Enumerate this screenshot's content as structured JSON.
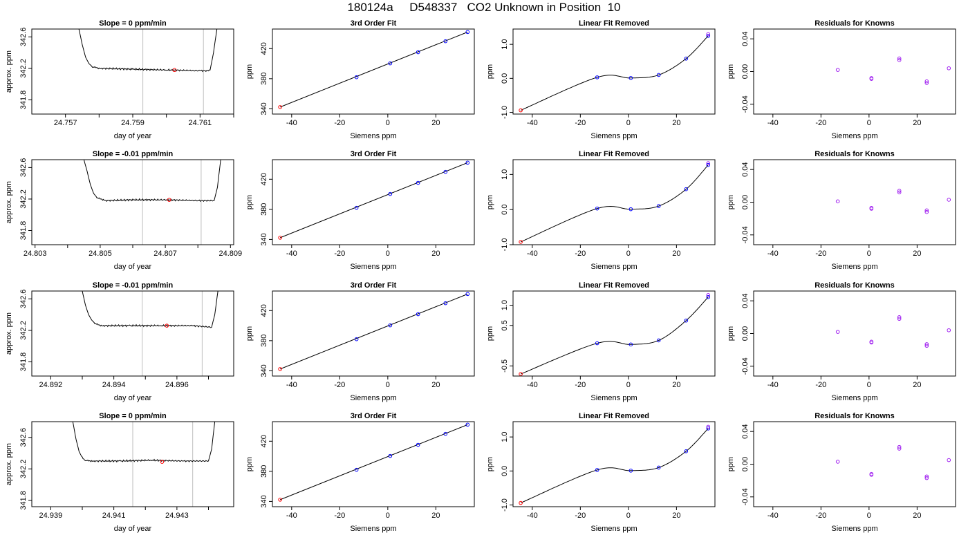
{
  "page": {
    "title": "180124a     D548337   CO2 Unknown in Position  10"
  },
  "colors": {
    "curve": "#000000",
    "vline": "#bebebe",
    "known_point": "#0000ff",
    "resid_point": "#a020f0",
    "unknown_point": "#ff0000"
  },
  "labels": {
    "fit_title": "3rd Order Fit",
    "resid_title": "Linear Fit Removed",
    "known_title": "Residuals for Knowns",
    "x_siemens": "Siemens ppm",
    "y_ppm": "ppm",
    "x_doy": "day of year",
    "y_approx": "approx. ppm"
  },
  "chart_data": [
    {
      "type": "line",
      "panel": "time",
      "title": "Slope =  0  ppm/min",
      "xlabel": "day of year",
      "ylabel": "approx. ppm",
      "xlim": [
        24.756,
        24.762
      ],
      "ylim": [
        341.62,
        342.7
      ],
      "xticks": [
        24.757,
        24.759,
        24.761
      ],
      "xticklabels": [
        "24.757",
        "24.759",
        "24.761"
      ],
      "xminor": [
        24.758,
        24.76,
        24.762
      ],
      "yticks": [
        341.8,
        342.2,
        342.6
      ],
      "yticklabels": [
        "341.8",
        "342.2",
        "342.6"
      ],
      "vlines": [
        24.7593,
        24.7611
      ],
      "x": [
        24.7574,
        24.7575,
        24.7576,
        24.7577,
        24.7578,
        24.7579,
        24.758,
        24.7581,
        24.759,
        24.76,
        24.761,
        24.7612,
        24.7613,
        24.7614,
        24.7615
      ],
      "y": [
        342.7,
        342.5,
        342.34,
        342.26,
        342.22,
        342.21,
        342.2,
        342.2,
        342.19,
        342.18,
        342.17,
        342.17,
        342.18,
        342.4,
        342.7
      ],
      "marker": [
        24.76024,
        342.18
      ]
    },
    {
      "type": "scatter",
      "panel": "fit",
      "title": "3rd Order Fit",
      "xlabel": "Siemens ppm",
      "ylabel": "ppm",
      "xlim": [
        -48,
        36
      ],
      "ylim": [
        333,
        446
      ],
      "xticks": [
        -40,
        -20,
        0,
        20
      ],
      "xticklabels": [
        "-40",
        "-20",
        "0",
        "20"
      ],
      "yticks": [
        340,
        380,
        420
      ],
      "yticklabels": [
        "340",
        "380",
        "420"
      ],
      "known_x": [
        -13.0,
        1.0,
        12.6,
        24.0,
        33.2
      ],
      "known_y": [
        382.0,
        400.4,
        415.2,
        429.8,
        442.0
      ],
      "unknown": [
        -44.8,
        342.3
      ],
      "line": [
        [
          -44.8,
          342.3
        ],
        [
          33.2,
          442.0
        ]
      ]
    },
    {
      "type": "scatter",
      "panel": "resid",
      "title": "Linear Fit Removed",
      "xlabel": "Siemens ppm",
      "ylabel": "ppm",
      "xlim": [
        -48,
        36
      ],
      "ylim": [
        -1.05,
        1.45
      ],
      "xticks": [
        -40,
        -20,
        0,
        20
      ],
      "xticklabels": [
        "-40",
        "-20",
        "0",
        "20"
      ],
      "yticks": [
        -1.0,
        0.0,
        1.0
      ],
      "yticklabels": [
        "-1.0",
        "0.0",
        "1.0"
      ],
      "known_x": [
        -13.0,
        1.0,
        12.6,
        24.0,
        33.2,
        33.2
      ],
      "known_y": [
        0.03,
        0.01,
        0.1,
        0.58,
        1.25,
        1.3
      ],
      "unknown": [
        -44.8,
        -0.94
      ]
    },
    {
      "type": "scatter",
      "panel": "knowns",
      "title": "Residuals for Knowns",
      "xlabel": "Siemens ppm",
      "ylabel": "ppm",
      "xlim": [
        -48,
        36
      ],
      "ylim": [
        -0.052,
        0.052
      ],
      "xticks": [
        -40,
        -20,
        0,
        20
      ],
      "xticklabels": [
        "-40",
        "-20",
        "0",
        "20"
      ],
      "yticks": [
        -0.04,
        0.0,
        0.04
      ],
      "yticklabels": [
        "-0.04",
        "0.00",
        "0.04"
      ],
      "x": [
        -13.0,
        1.0,
        1.0,
        12.6,
        12.6,
        24.0,
        24.0,
        33.2
      ],
      "y": [
        0.002,
        -0.008,
        -0.009,
        0.014,
        0.016,
        -0.012,
        -0.014,
        0.004
      ]
    },
    {
      "type": "line",
      "panel": "time",
      "title": "Slope =  -0.01  ppm/min",
      "xlabel": "day of year",
      "ylabel": "approx. ppm",
      "xlim": [
        24.8029,
        24.8091
      ],
      "ylim": [
        341.62,
        342.7
      ],
      "xticks": [
        24.803,
        24.805,
        24.807,
        24.809
      ],
      "xticklabels": [
        "24.803",
        "24.805",
        "24.807",
        "24.809"
      ],
      "xminor": [
        24.804,
        24.806,
        24.808
      ],
      "yticks": [
        341.8,
        342.2,
        342.6
      ],
      "yticklabels": [
        "341.8",
        "342.2",
        "342.6"
      ],
      "vlines": [
        24.8063,
        24.8081
      ],
      "x": [
        24.8045,
        24.8046,
        24.8047,
        24.8048,
        24.8049,
        24.805,
        24.8051,
        24.8052,
        24.806,
        24.807,
        24.808,
        24.8085,
        24.8086,
        24.8087
      ],
      "y": [
        342.7,
        342.55,
        342.38,
        342.27,
        342.22,
        342.2,
        342.19,
        342.18,
        342.19,
        342.19,
        342.18,
        342.18,
        342.35,
        342.7
      ],
      "marker": [
        24.80712,
        342.19
      ]
    },
    {
      "type": "scatter",
      "panel": "fit",
      "title": "3rd Order Fit",
      "xlabel": "Siemens ppm",
      "ylabel": "ppm",
      "xlim": [
        -48,
        36
      ],
      "ylim": [
        333,
        446
      ],
      "xticks": [
        -40,
        -20,
        0,
        20
      ],
      "xticklabels": [
        "-40",
        "-20",
        "0",
        "20"
      ],
      "yticks": [
        340,
        380,
        420
      ],
      "yticklabels": [
        "340",
        "380",
        "420"
      ],
      "known_x": [
        -13.0,
        1.0,
        12.6,
        24.0,
        33.2
      ],
      "known_y": [
        382.0,
        400.4,
        415.2,
        429.8,
        442.0
      ],
      "unknown": [
        -44.8,
        342.3
      ],
      "line": [
        [
          -44.8,
          342.3
        ],
        [
          33.2,
          442.0
        ]
      ]
    },
    {
      "type": "scatter",
      "panel": "resid",
      "title": "Linear Fit Removed",
      "xlabel": "Siemens ppm",
      "ylabel": "ppm",
      "xlim": [
        -48,
        36
      ],
      "ylim": [
        -1.0,
        1.42
      ],
      "xticks": [
        -40,
        -20,
        0,
        20
      ],
      "xticklabels": [
        "-40",
        "-20",
        "0",
        "20"
      ],
      "yticks": [
        -1.0,
        0.0,
        1.0
      ],
      "yticklabels": [
        "-1.0",
        "0.0",
        "1.0"
      ],
      "known_x": [
        -13.0,
        1.0,
        12.6,
        24.0,
        33.2,
        33.2
      ],
      "known_y": [
        0.03,
        0.01,
        0.1,
        0.58,
        1.27,
        1.32
      ],
      "unknown": [
        -44.8,
        -0.92
      ]
    },
    {
      "type": "scatter",
      "panel": "knowns",
      "title": "Residuals for Knowns",
      "xlabel": "Siemens ppm",
      "ylabel": "ppm",
      "xlim": [
        -48,
        36
      ],
      "ylim": [
        -0.052,
        0.052
      ],
      "xticks": [
        -40,
        -20,
        0,
        20
      ],
      "xticklabels": [
        "-40",
        "-20",
        "0",
        "20"
      ],
      "yticks": [
        -0.04,
        0.0,
        0.04
      ],
      "yticklabels": [
        "-0.04",
        "0.00",
        "0.04"
      ],
      "x": [
        -13.0,
        1.0,
        1.0,
        12.6,
        12.6,
        24.0,
        24.0,
        33.2
      ],
      "y": [
        0.001,
        -0.007,
        -0.008,
        0.012,
        0.014,
        -0.01,
        -0.012,
        0.003
      ]
    },
    {
      "type": "line",
      "panel": "time",
      "title": "Slope =  -0.01  ppm/min",
      "xlabel": "day of year",
      "ylabel": "approx. ppm",
      "xlim": [
        24.8914,
        24.8978
      ],
      "ylim": [
        341.62,
        342.7
      ],
      "xticks": [
        24.892,
        24.894,
        24.896
      ],
      "xticklabels": [
        "24.892",
        "24.894",
        "24.896"
      ],
      "xminor": [
        24.893,
        24.895,
        24.897
      ],
      "yticks": [
        341.8,
        342.2,
        342.6
      ],
      "yticklabels": [
        "341.8",
        "342.2",
        "342.6"
      ],
      "vlines": [
        24.8949,
        24.8968
      ],
      "x": [
        24.893,
        24.8931,
        24.8932,
        24.8933,
        24.8934,
        24.8935,
        24.8936,
        24.8937,
        24.8945,
        24.8955,
        24.8965,
        24.8971,
        24.8972,
        24.8973
      ],
      "y": [
        342.7,
        342.52,
        342.4,
        342.33,
        342.29,
        342.27,
        342.26,
        342.26,
        342.26,
        342.26,
        342.26,
        342.24,
        342.4,
        342.7
      ],
      "marker": [
        24.89568,
        342.26
      ]
    },
    {
      "type": "scatter",
      "panel": "fit",
      "title": "3rd Order Fit",
      "xlabel": "Siemens ppm",
      "ylabel": "ppm",
      "xlim": [
        -48,
        36
      ],
      "ylim": [
        333,
        446
      ],
      "xticks": [
        -40,
        -20,
        0,
        20
      ],
      "xticklabels": [
        "-40",
        "-20",
        "0",
        "20"
      ],
      "yticks": [
        340,
        380,
        420
      ],
      "yticklabels": [
        "340",
        "380",
        "420"
      ],
      "known_x": [
        -13.0,
        1.0,
        12.6,
        24.0,
        33.2
      ],
      "known_y": [
        382.0,
        400.4,
        415.2,
        429.8,
        442.0
      ],
      "unknown": [
        -44.8,
        342.3
      ],
      "line": [
        [
          -44.8,
          342.3
        ],
        [
          33.2,
          442.0
        ]
      ]
    },
    {
      "type": "scatter",
      "panel": "resid",
      "title": "Linear Fit Removed",
      "xlabel": "Siemens ppm",
      "ylabel": "ppm",
      "xlim": [
        -48,
        36
      ],
      "ylim": [
        -0.75,
        1.35
      ],
      "xticks": [
        -40,
        -20,
        0,
        20
      ],
      "xticklabels": [
        "-40",
        "-20",
        "0",
        "20"
      ],
      "yticks": [
        -0.5,
        0.5,
        1.0
      ],
      "yticklabels": [
        "-0.5",
        "0.5",
        "1.0"
      ],
      "known_x": [
        -13.0,
        1.0,
        12.6,
        24.0,
        33.2,
        33.2
      ],
      "known_y": [
        0.06,
        0.03,
        0.13,
        0.62,
        1.2,
        1.25
      ],
      "unknown": [
        -44.8,
        -0.7
      ]
    },
    {
      "type": "scatter",
      "panel": "knowns",
      "title": "Residuals for Knowns",
      "xlabel": "Siemens ppm",
      "ylabel": "ppm",
      "xlim": [
        -48,
        36
      ],
      "ylim": [
        -0.052,
        0.052
      ],
      "xticks": [
        -40,
        -20,
        0,
        20
      ],
      "xticklabels": [
        "-40",
        "-20",
        "0",
        "20"
      ],
      "yticks": [
        -0.04,
        0.0,
        0.04
      ],
      "yticklabels": [
        "-0.04",
        "0.00",
        "0.04"
      ],
      "x": [
        -13.0,
        1.0,
        1.0,
        12.6,
        12.6,
        24.0,
        24.0,
        33.2
      ],
      "y": [
        0.002,
        -0.01,
        -0.011,
        0.018,
        0.02,
        -0.013,
        -0.015,
        0.004
      ]
    },
    {
      "type": "line",
      "panel": "time",
      "title": "Slope =  0  ppm/min",
      "xlabel": "day of year",
      "ylabel": "approx. ppm",
      "xlim": [
        24.9384,
        24.9448
      ],
      "ylim": [
        341.72,
        342.8
      ],
      "xticks": [
        24.939,
        24.941,
        24.943
      ],
      "xticklabels": [
        "24.939",
        "24.941",
        "24.943"
      ],
      "xminor": [
        24.94,
        24.942,
        24.944
      ],
      "yticks": [
        341.8,
        342.2,
        342.6
      ],
      "yticklabels": [
        "341.8",
        "342.2",
        "342.6"
      ],
      "vlines": [
        24.9416,
        24.9435
      ],
      "x": [
        24.9397,
        24.9398,
        24.9399,
        24.94,
        24.9401,
        24.9402,
        24.9403,
        24.9404,
        24.9412,
        24.9422,
        24.9432,
        24.944,
        24.9441,
        24.9442
      ],
      "y": [
        342.8,
        342.58,
        342.42,
        342.34,
        342.31,
        342.3,
        342.3,
        342.3,
        342.3,
        342.31,
        342.3,
        342.3,
        342.45,
        342.8
      ],
      "marker": [
        24.94253,
        342.29
      ]
    },
    {
      "type": "scatter",
      "panel": "fit",
      "title": "3rd Order Fit",
      "xlabel": "Siemens ppm",
      "ylabel": "ppm",
      "xlim": [
        -48,
        36
      ],
      "ylim": [
        333,
        446
      ],
      "xticks": [
        -40,
        -20,
        0,
        20
      ],
      "xticklabels": [
        "-40",
        "-20",
        "0",
        "20"
      ],
      "yticks": [
        340,
        380,
        420
      ],
      "yticklabels": [
        "340",
        "380",
        "420"
      ],
      "known_x": [
        -13.0,
        1.0,
        12.6,
        24.0,
        33.2
      ],
      "known_y": [
        382.0,
        400.4,
        415.2,
        429.8,
        442.0
      ],
      "unknown": [
        -44.8,
        342.3
      ],
      "line": [
        [
          -44.8,
          342.3
        ],
        [
          33.2,
          442.0
        ]
      ]
    },
    {
      "type": "scatter",
      "panel": "resid",
      "title": "Linear Fit Removed",
      "xlabel": "Siemens ppm",
      "ylabel": "ppm",
      "xlim": [
        -48,
        36
      ],
      "ylim": [
        -1.05,
        1.45
      ],
      "xticks": [
        -40,
        -20,
        0,
        20
      ],
      "xticklabels": [
        "-40",
        "-20",
        "0",
        "20"
      ],
      "yticks": [
        -1.0,
        0.0,
        1.0
      ],
      "yticklabels": [
        "-1.0",
        "0.0",
        "1.0"
      ],
      "known_x": [
        -13.0,
        1.0,
        12.6,
        24.0,
        33.2,
        33.2
      ],
      "known_y": [
        0.03,
        0.01,
        0.1,
        0.58,
        1.25,
        1.3
      ],
      "unknown": [
        -44.8,
        -0.94
      ]
    },
    {
      "type": "scatter",
      "panel": "knowns",
      "title": "Residuals for Knowns",
      "xlabel": "Siemens ppm",
      "ylabel": "ppm",
      "xlim": [
        -48,
        36
      ],
      "ylim": [
        -0.052,
        0.052
      ],
      "xticks": [
        -40,
        -20,
        0,
        20
      ],
      "xticklabels": [
        "-40",
        "-20",
        "0",
        "20"
      ],
      "yticks": [
        -0.04,
        0.0,
        0.04
      ],
      "yticklabels": [
        "-0.04",
        "0.00",
        "0.04"
      ],
      "x": [
        -13.0,
        1.0,
        1.0,
        12.6,
        12.6,
        24.0,
        24.0,
        33.2
      ],
      "y": [
        0.003,
        -0.012,
        -0.013,
        0.019,
        0.021,
        -0.015,
        -0.017,
        0.005
      ]
    }
  ]
}
